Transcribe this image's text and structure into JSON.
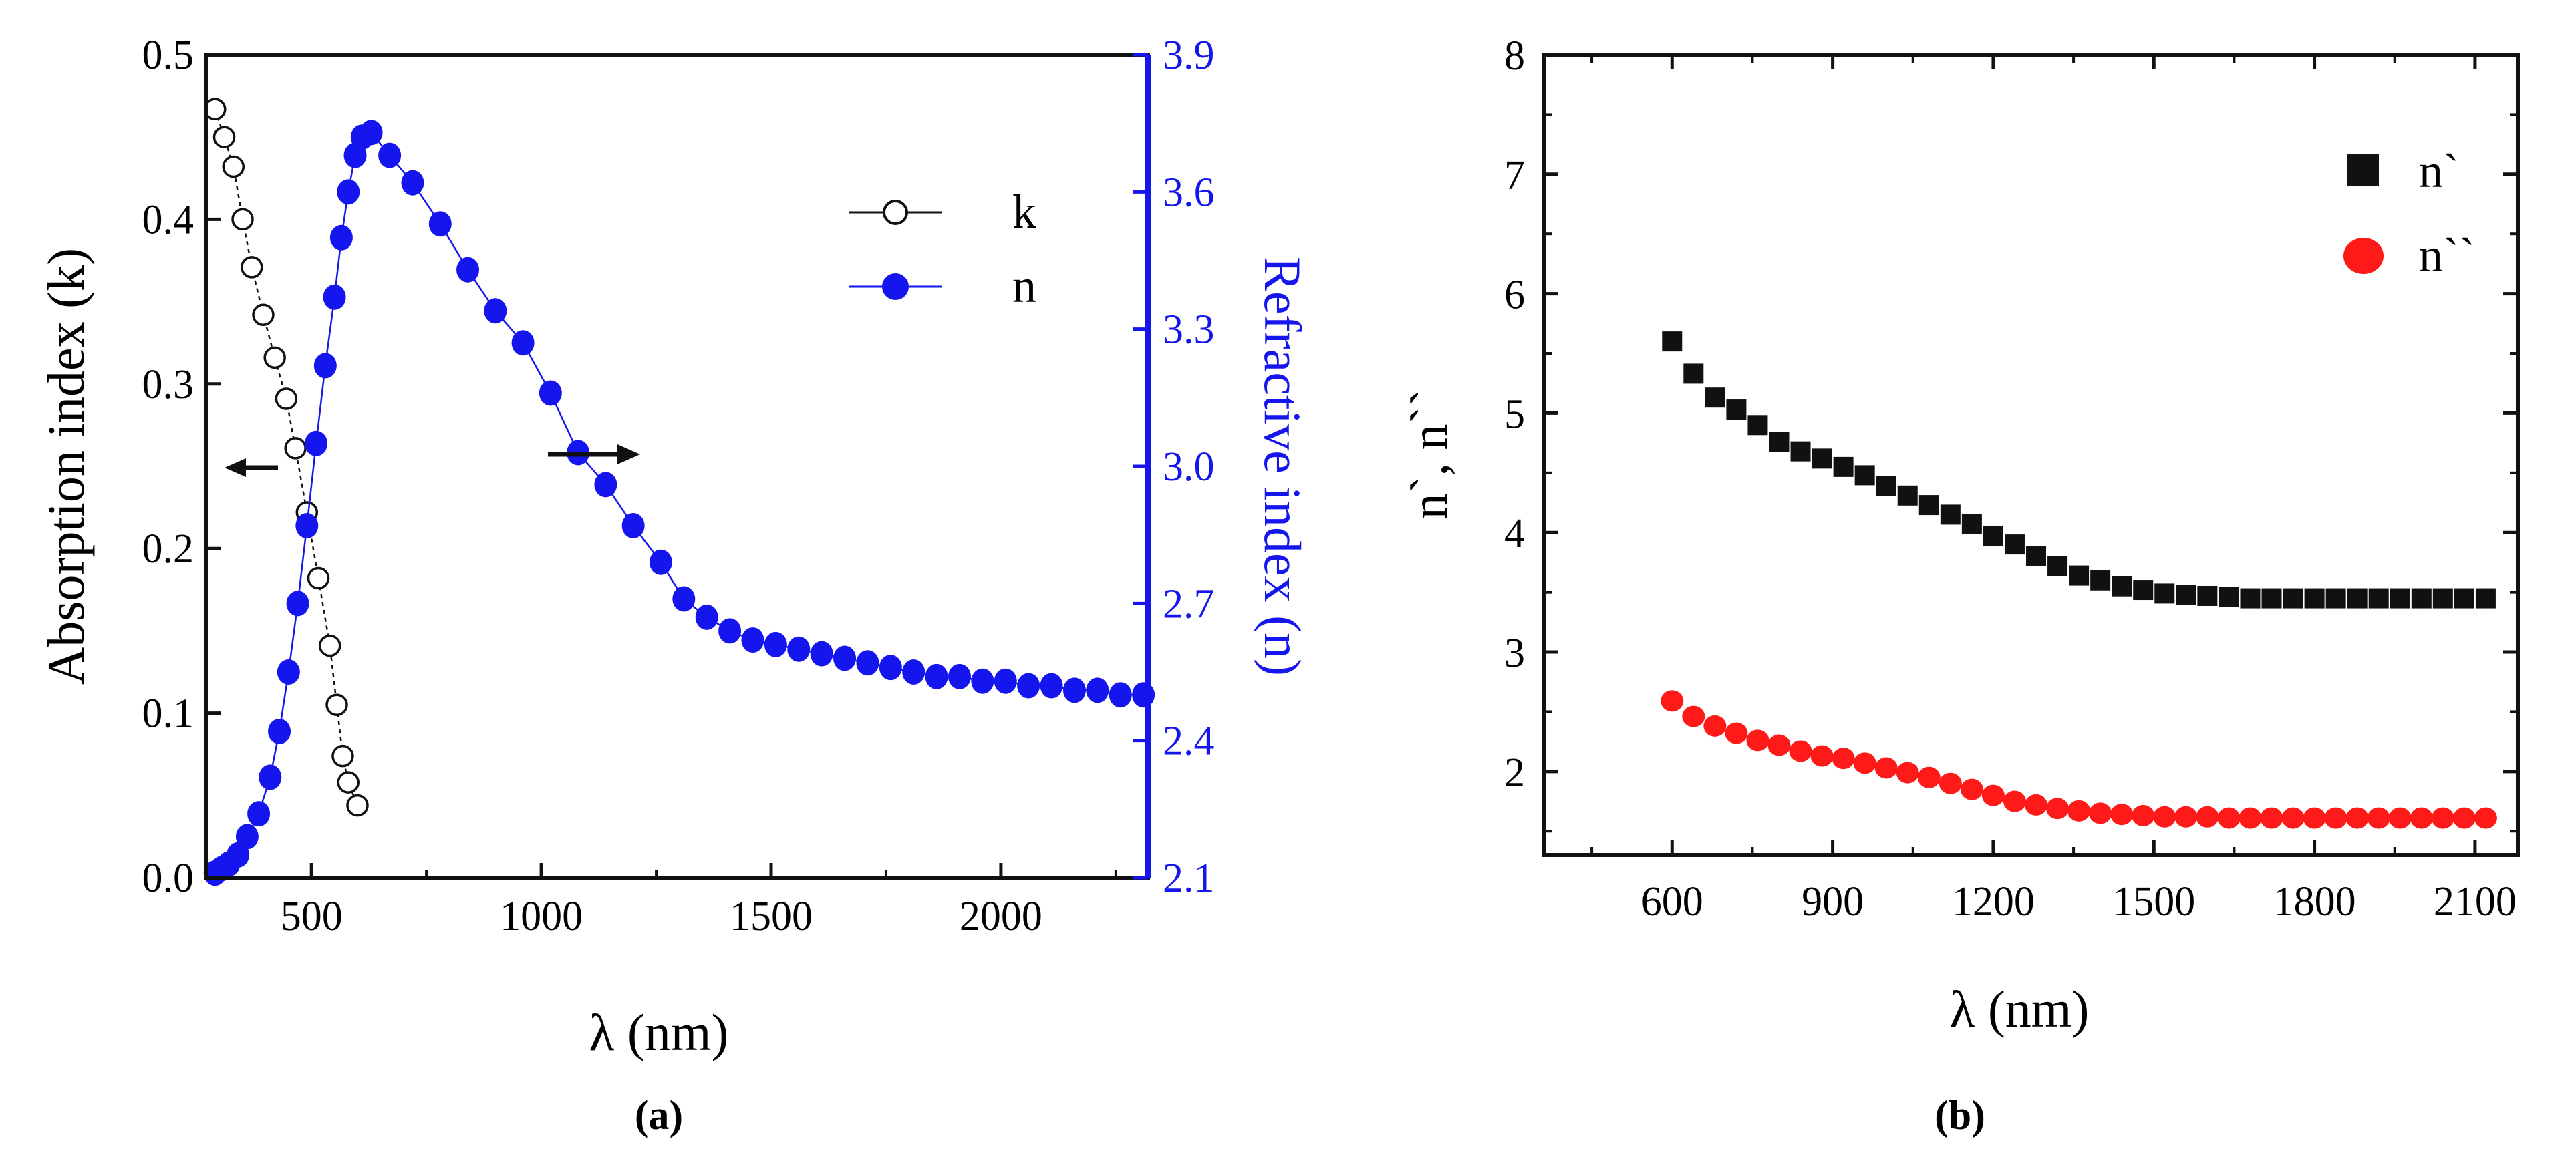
{
  "panel_labels": {
    "a": "(a)",
    "b": "(b)"
  },
  "colors": {
    "blue": "#1515ee",
    "red": "#ff1a1a",
    "black": "#111111"
  },
  "chart_data": [
    {
      "id": "a",
      "type": "scatter",
      "xlabel": "λ (nm)",
      "ylabel_left": "Absorption index (k)",
      "ylabel_right": "Refractive index (n)",
      "xlim": [
        270,
        2320
      ],
      "ylim_left": [
        0,
        0.5
      ],
      "ylim_right": [
        2.1,
        3.9
      ],
      "xticks": [
        500,
        1000,
        1500,
        2000
      ],
      "yticks_left": [
        "0.0",
        "0.1",
        "0.2",
        "0.3",
        "0.4",
        "0.5"
      ],
      "yticks_right": [
        "2.1",
        "2.4",
        "2.7",
        "3.0",
        "3.3",
        "3.6",
        "3.9"
      ],
      "legend": {
        "position": "top-right",
        "entries": [
          "k",
          "n"
        ]
      },
      "annotations": [
        "arrow-left-to-k-axis",
        "arrow-right-to-n-axis"
      ],
      "series": [
        {
          "name": "k",
          "axis": "left",
          "marker": "open-circle",
          "x": [
            290,
            310,
            330,
            350,
            370,
            395,
            420,
            445,
            465,
            490,
            515,
            540,
            555,
            568,
            580,
            600
          ],
          "y": [
            0.467,
            0.45,
            0.432,
            0.4,
            0.371,
            0.342,
            0.316,
            0.291,
            0.261,
            0.222,
            0.182,
            0.141,
            0.105,
            0.074,
            0.058,
            0.044
          ]
        },
        {
          "name": "n",
          "axis": "right",
          "marker": "filled-circle",
          "x": [
            290,
            305,
            320,
            340,
            360,
            385,
            410,
            430,
            450,
            470,
            490,
            510,
            530,
            550,
            565,
            580,
            595,
            610,
            630,
            670,
            720,
            780,
            840,
            900,
            960,
            1020,
            1080,
            1140,
            1200,
            1260,
            1310,
            1360,
            1410,
            1460,
            1510,
            1560,
            1610,
            1660,
            1710,
            1760,
            1810,
            1860,
            1910,
            1960,
            2010,
            2060,
            2110,
            2160,
            2210,
            2260,
            2310
          ],
          "y": [
            2.11,
            2.12,
            2.13,
            2.15,
            2.19,
            2.24,
            2.32,
            2.42,
            2.55,
            2.7,
            2.87,
            3.05,
            3.22,
            3.37,
            3.5,
            3.6,
            3.68,
            3.72,
            3.73,
            3.68,
            3.62,
            3.53,
            3.43,
            3.34,
            3.27,
            3.16,
            3.03,
            2.96,
            2.87,
            2.79,
            2.71,
            2.67,
            2.64,
            2.62,
            2.61,
            2.6,
            2.59,
            2.58,
            2.57,
            2.56,
            2.55,
            2.54,
            2.54,
            2.53,
            2.53,
            2.52,
            2.52,
            2.51,
            2.51,
            2.5,
            2.5
          ]
        }
      ]
    },
    {
      "id": "b",
      "type": "scatter",
      "xlabel": "λ (nm)",
      "ylabel": "n`, n``",
      "xlim": [
        360,
        2180
      ],
      "ylim": [
        1.3,
        8
      ],
      "xticks": [
        600,
        900,
        1200,
        1500,
        1800,
        2100
      ],
      "yticks": [
        2,
        3,
        4,
        5,
        6,
        7,
        8
      ],
      "legend": {
        "position": "top-right",
        "entries": [
          "n`",
          "n``"
        ]
      },
      "series": [
        {
          "name": "n`",
          "marker": "filled-square",
          "x": [
            600,
            640,
            680,
            720,
            760,
            800,
            840,
            880,
            920,
            960,
            1000,
            1040,
            1080,
            1120,
            1160,
            1200,
            1240,
            1280,
            1320,
            1360,
            1400,
            1440,
            1480,
            1520,
            1560,
            1600,
            1640,
            1680,
            1720,
            1760,
            1800,
            1840,
            1880,
            1920,
            1960,
            2000,
            2040,
            2080,
            2120
          ],
          "y": [
            5.6,
            5.33,
            5.13,
            5.03,
            4.9,
            4.76,
            4.68,
            4.62,
            4.55,
            4.48,
            4.39,
            4.31,
            4.23,
            4.15,
            4.07,
            3.97,
            3.9,
            3.8,
            3.72,
            3.64,
            3.6,
            3.55,
            3.52,
            3.49,
            3.48,
            3.47,
            3.46,
            3.45,
            3.45,
            3.45,
            3.45,
            3.45,
            3.45,
            3.45,
            3.45,
            3.45,
            3.45,
            3.45,
            3.45
          ]
        },
        {
          "name": "n``",
          "marker": "filled-circle",
          "x": [
            600,
            640,
            680,
            720,
            760,
            800,
            840,
            880,
            920,
            960,
            1000,
            1040,
            1080,
            1120,
            1160,
            1200,
            1240,
            1280,
            1320,
            1360,
            1400,
            1440,
            1480,
            1520,
            1560,
            1600,
            1640,
            1680,
            1720,
            1760,
            1800,
            1840,
            1880,
            1920,
            1960,
            2000,
            2040,
            2080,
            2120
          ],
          "y": [
            2.59,
            2.46,
            2.38,
            2.32,
            2.26,
            2.22,
            2.17,
            2.13,
            2.11,
            2.07,
            2.03,
            1.99,
            1.95,
            1.9,
            1.85,
            1.8,
            1.75,
            1.72,
            1.69,
            1.67,
            1.65,
            1.64,
            1.63,
            1.62,
            1.62,
            1.62,
            1.61,
            1.61,
            1.61,
            1.61,
            1.61,
            1.61,
            1.61,
            1.61,
            1.61,
            1.61,
            1.61,
            1.61,
            1.61
          ]
        }
      ]
    }
  ]
}
